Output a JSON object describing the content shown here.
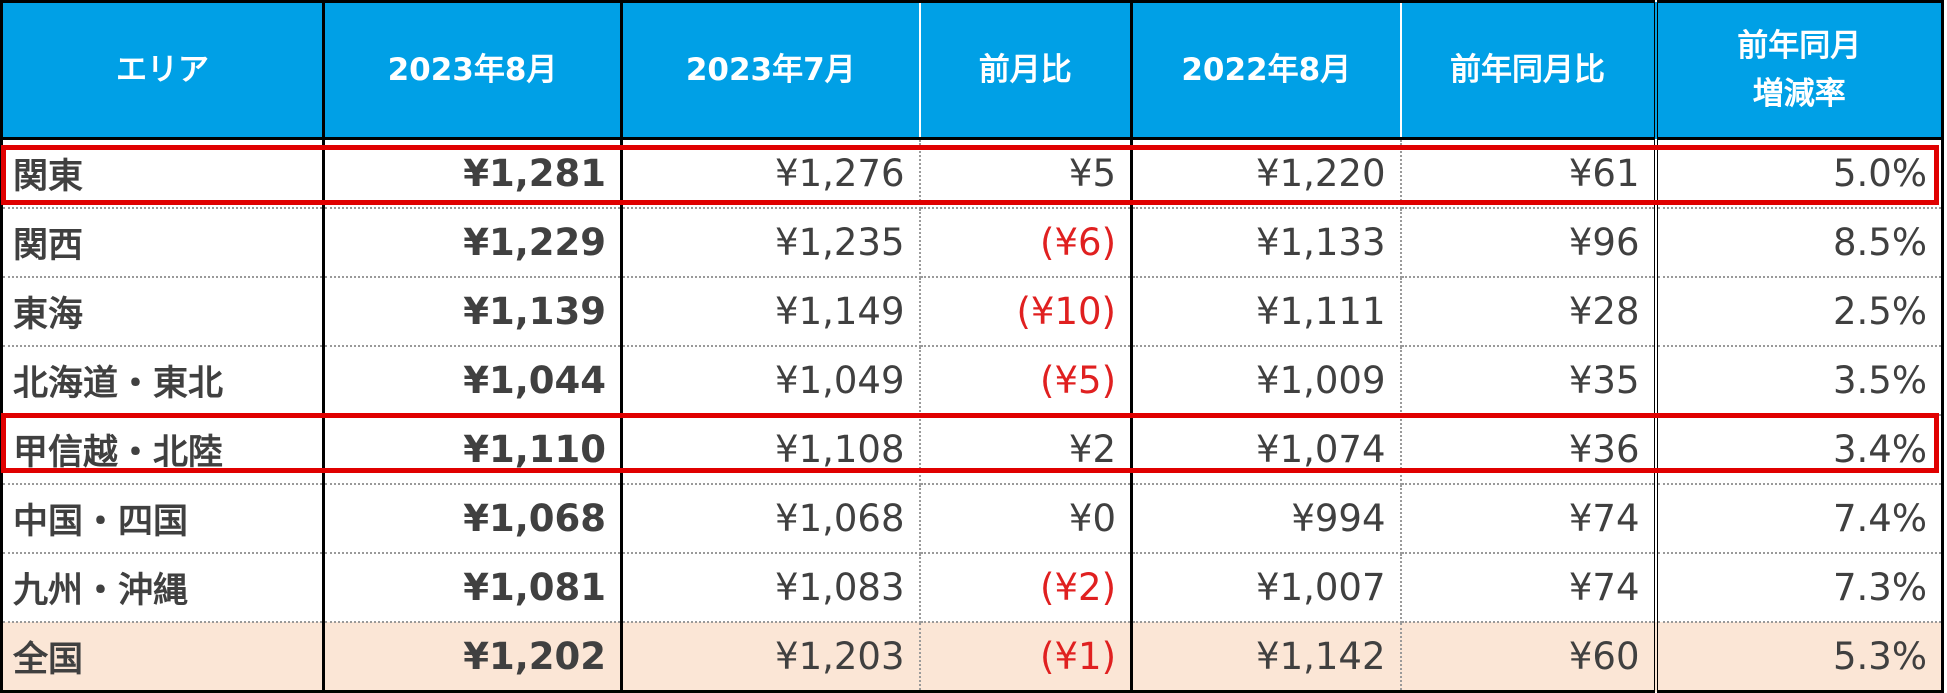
{
  "headers": [
    "エリア",
    "2023年8月",
    "2023年7月",
    "前月比",
    "2022年8月",
    "前年同月比",
    [
      "前年同月",
      "増減率"
    ]
  ],
  "rows": [
    {
      "area": "関東",
      "aug2023": "¥1,281",
      "jul2023": "¥1,276",
      "mom": "¥5",
      "aug2022": "¥1,220",
      "yoy": "¥61",
      "rate": "5.0%"
    },
    {
      "area": "関西",
      "aug2023": "¥1,229",
      "jul2023": "¥1,235",
      "mom": "(¥6)",
      "aug2022": "¥1,133",
      "yoy": "¥96",
      "rate": "8.5%"
    },
    {
      "area": "東海",
      "aug2023": "¥1,139",
      "jul2023": "¥1,149",
      "mom": "(¥10)",
      "aug2022": "¥1,111",
      "yoy": "¥28",
      "rate": "2.5%"
    },
    {
      "area": "北海道・東北",
      "aug2023": "¥1,044",
      "jul2023": "¥1,049",
      "mom": "(¥5)",
      "aug2022": "¥1,009",
      "yoy": "¥35",
      "rate": "3.5%"
    },
    {
      "area": "甲信越・北陸",
      "aug2023": "¥1,110",
      "jul2023": "¥1,108",
      "mom": "¥2",
      "aug2022": "¥1,074",
      "yoy": "¥36",
      "rate": "3.4%"
    },
    {
      "area": "中国・四国",
      "aug2023": "¥1,068",
      "jul2023": "¥1,068",
      "mom": "¥0",
      "aug2022": "¥994",
      "yoy": "¥74",
      "rate": "7.4%"
    },
    {
      "area": "九州・沖縄",
      "aug2023": "¥1,081",
      "jul2023": "¥1,083",
      "mom": "(¥2)",
      "aug2022": "¥1,007",
      "yoy": "¥74",
      "rate": "7.3%"
    },
    {
      "area": "全国",
      "aug2023": "¥1,202",
      "jul2023": "¥1,203",
      "mom": "(¥1)",
      "aug2022": "¥1,142",
      "yoy": "¥60",
      "rate": "5.3%"
    }
  ],
  "colors": {
    "header_bg": "#00a0e6",
    "negative": "#e02020",
    "total_row_bg": "#fbe6d6",
    "highlight": "#e00000"
  }
}
